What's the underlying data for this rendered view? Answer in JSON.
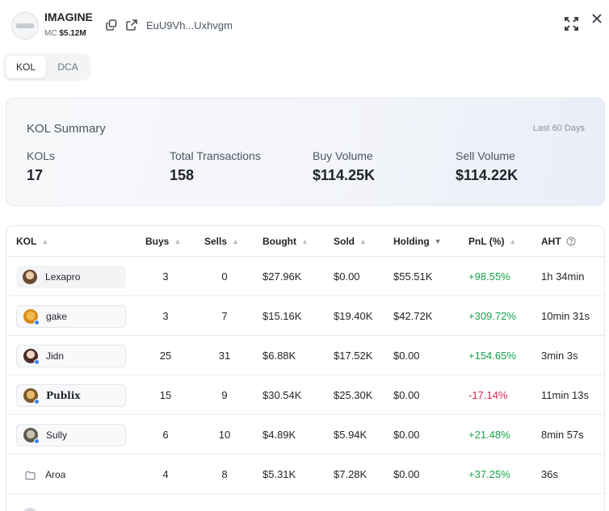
{
  "token": {
    "name": "IMAGINE",
    "mc_label": "MC",
    "mc_value": "$5.12M",
    "address": "EuU9Vh...Uxhvgm"
  },
  "tabs": [
    {
      "label": "KOL",
      "active": true
    },
    {
      "label": "DCA",
      "active": false
    }
  ],
  "summary": {
    "title": "KOL Summary",
    "period": "Last 60 Days",
    "stats": [
      {
        "label": "KOLs",
        "value": "17"
      },
      {
        "label": "Total Transactions",
        "value": "158"
      },
      {
        "label": "Buy Volume",
        "value": "$114.25K"
      },
      {
        "label": "Sell Volume",
        "value": "$114.22K"
      }
    ]
  },
  "table": {
    "columns": [
      "KOL",
      "Buys",
      "Sells",
      "Bought",
      "Sold",
      "Holding",
      "PnL (%)",
      "AHT"
    ],
    "rows": [
      {
        "kol": "Lexapro",
        "buys": "3",
        "sells": "0",
        "bought": "$27.96K",
        "sold": "$0.00",
        "holding": "$55.51K",
        "pnl": "+98.55%",
        "aht": "1h 34min"
      },
      {
        "kol": "gake",
        "buys": "3",
        "sells": "7",
        "bought": "$15.16K",
        "sold": "$19.40K",
        "holding": "$42.72K",
        "pnl": "+309.72%",
        "aht": "10min 31s"
      },
      {
        "kol": "Jidn",
        "buys": "25",
        "sells": "31",
        "bought": "$6.88K",
        "sold": "$17.52K",
        "holding": "$0.00",
        "pnl": "+154.65%",
        "aht": "3min 3s"
      },
      {
        "kol": "Publix",
        "buys": "15",
        "sells": "9",
        "bought": "$30.54K",
        "sold": "$25.30K",
        "holding": "$0.00",
        "pnl": "-17.14%",
        "aht": "11min 13s"
      },
      {
        "kol": "Sully",
        "buys": "6",
        "sells": "10",
        "bought": "$4.89K",
        "sold": "$5.94K",
        "holding": "$0.00",
        "pnl": "+21.48%",
        "aht": "8min 57s"
      },
      {
        "kol": "Aroa",
        "buys": "4",
        "sells": "8",
        "bought": "$5.31K",
        "sold": "$7.28K",
        "holding": "$0.00",
        "pnl": "+37.25%",
        "aht": "36s"
      }
    ]
  },
  "colors": {
    "positive": "#16a34a",
    "negative": "#dc2650",
    "accent_dot": "#3b82f6"
  }
}
